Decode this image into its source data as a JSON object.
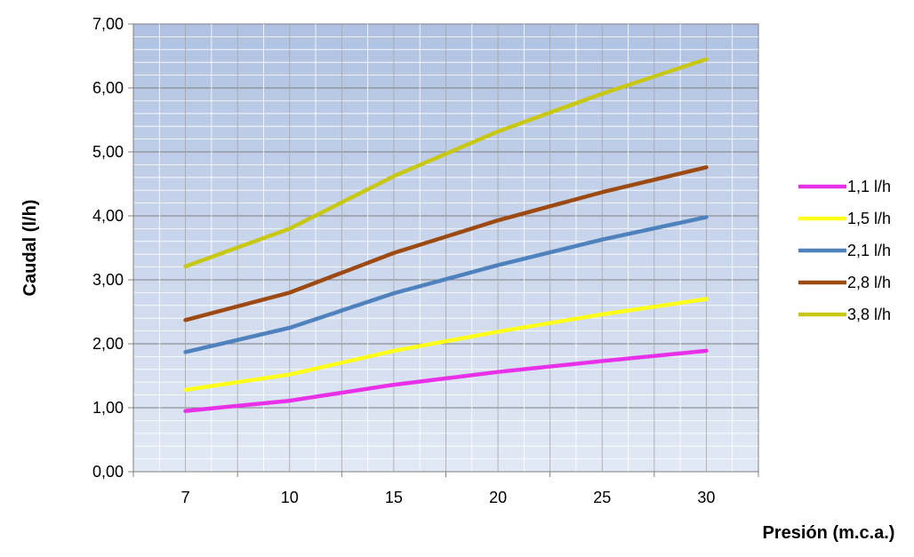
{
  "chart_data": {
    "type": "line",
    "title": "",
    "xlabel": "Presión (m.c.a.)",
    "ylabel": "Caudal (l/h)",
    "categories": [
      "7",
      "10",
      "15",
      "20",
      "25",
      "30"
    ],
    "ylim": [
      0,
      7
    ],
    "y_ticks": [
      "0,00",
      "1,00",
      "2,00",
      "3,00",
      "4,00",
      "5,00",
      "6,00",
      "7,00"
    ],
    "grid": true,
    "legend_position": "right",
    "plot_background": "gradient-blue",
    "series": [
      {
        "name": "1,1 l/h",
        "color": "#E830E8",
        "values": [
          0.95,
          1.11,
          1.36,
          1.56,
          1.73,
          1.89
        ]
      },
      {
        "name": "1,5 l/h",
        "color": "#FFFF1A",
        "values": [
          1.28,
          1.52,
          1.89,
          2.19,
          2.46,
          2.7
        ]
      },
      {
        "name": "2,1 l/h",
        "color": "#4F81BD",
        "values": [
          1.87,
          2.25,
          2.79,
          3.23,
          3.63,
          3.98
        ]
      },
      {
        "name": "2,8 l/h",
        "color": "#9C4A12",
        "values": [
          2.37,
          2.8,
          3.42,
          3.93,
          4.37,
          4.76
        ]
      },
      {
        "name": "3,8 l/h",
        "color": "#C8C814",
        "values": [
          3.21,
          3.8,
          4.62,
          5.32,
          5.91,
          6.45
        ]
      }
    ]
  }
}
